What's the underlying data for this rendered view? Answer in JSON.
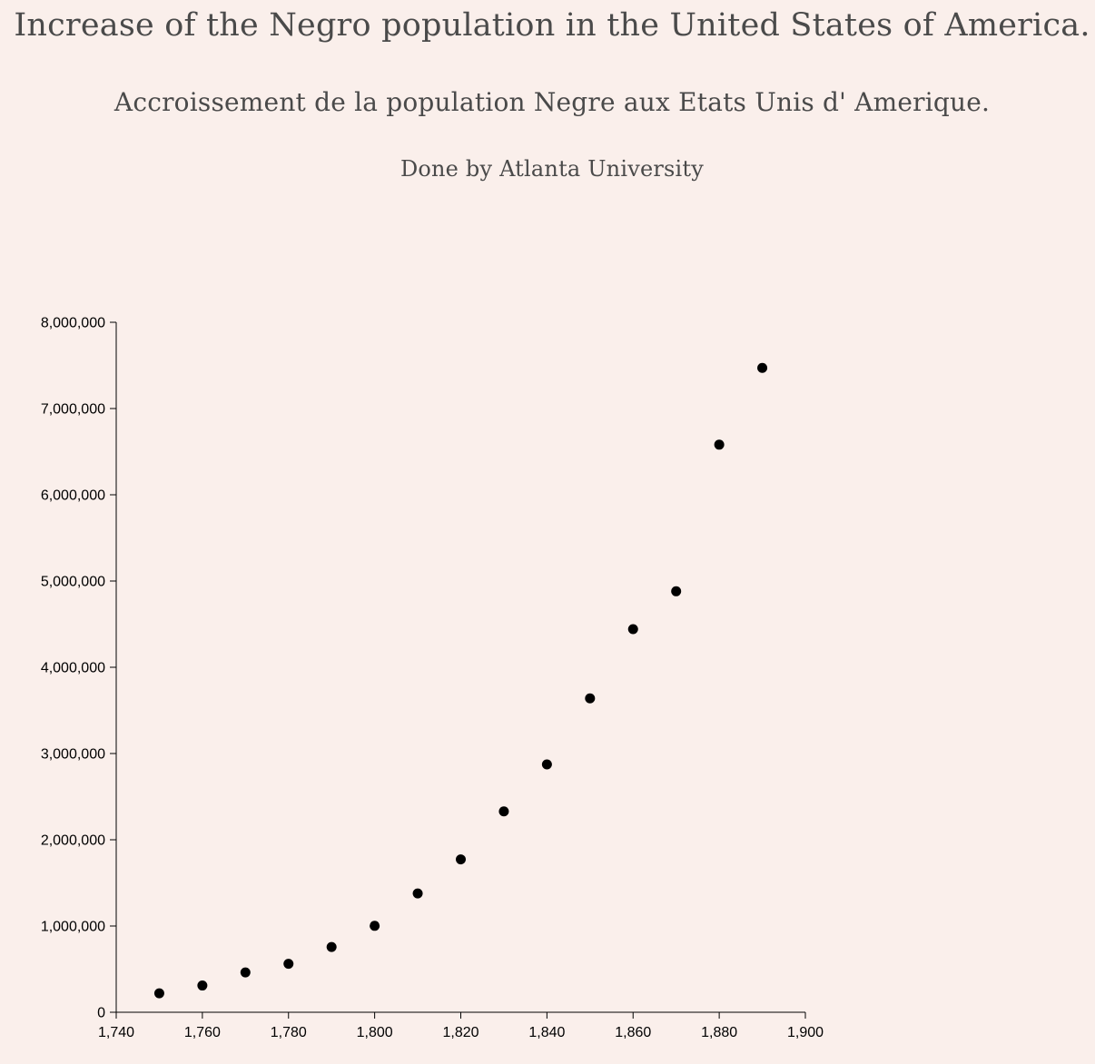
{
  "header": {
    "title": "Increase of the Negro population in the United States of America.",
    "subtitle": "Accroissement de la population Negre aux Etats Unis d' Amerique.",
    "credit": "Done by Atlanta University"
  },
  "chart_data": {
    "type": "scatter",
    "title": "Increase of the Negro population in the United States of America.",
    "subtitle": "Accroissement de la population Negre aux Etats Unis d' Amerique.",
    "xlabel": "",
    "ylabel": "",
    "xlim": [
      1740,
      1900
    ],
    "ylim": [
      0,
      8000000
    ],
    "x_ticks": [
      "1,740",
      "1,760",
      "1,780",
      "1,800",
      "1,820",
      "1,840",
      "1,860",
      "1,880",
      "1,900"
    ],
    "x_tick_values": [
      1740,
      1760,
      1780,
      1800,
      1820,
      1840,
      1860,
      1880,
      1900
    ],
    "y_ticks": [
      "0",
      "1,000,000",
      "2,000,000",
      "3,000,000",
      "4,000,000",
      "5,000,000",
      "6,000,000",
      "7,000,000",
      "8,000,000"
    ],
    "y_tick_values": [
      0,
      1000000,
      2000000,
      3000000,
      4000000,
      5000000,
      6000000,
      7000000,
      8000000
    ],
    "grid": false,
    "point_color": "#000000",
    "x": [
      1750,
      1760,
      1770,
      1780,
      1790,
      1800,
      1810,
      1820,
      1830,
      1840,
      1850,
      1860,
      1870,
      1880,
      1890
    ],
    "y": [
      220000,
      310000,
      462000,
      562000,
      757000,
      1002000,
      1378000,
      1772000,
      2329000,
      2874000,
      3639000,
      4442000,
      4881000,
      6581000,
      7471000
    ]
  }
}
